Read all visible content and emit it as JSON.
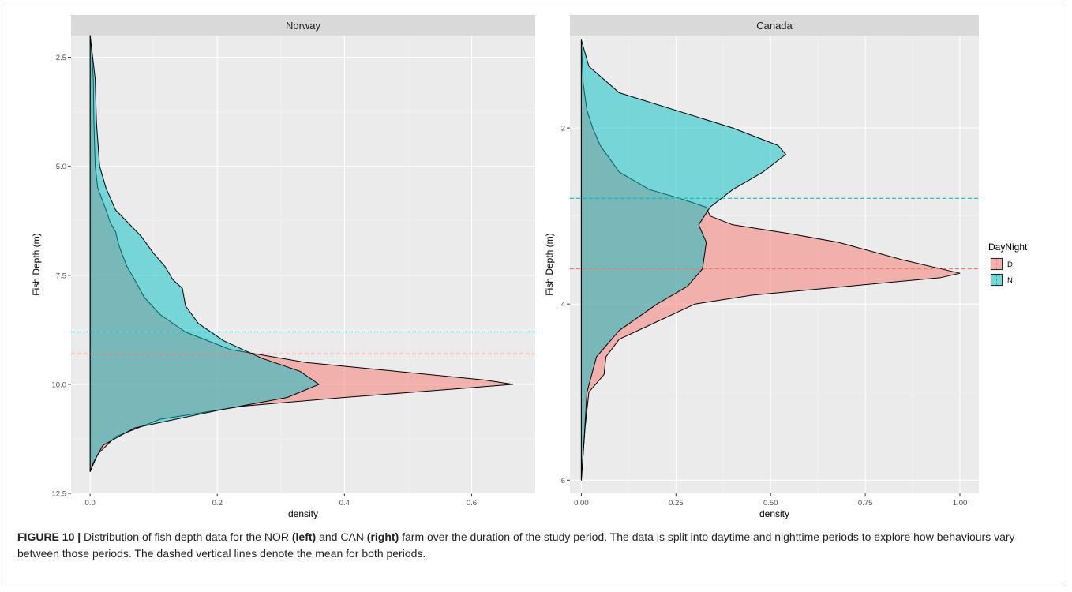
{
  "chart_data": [
    {
      "type": "area",
      "title": "Norway",
      "xlabel": "density",
      "ylabel": "Fish Depth (m)",
      "xlim": [
        -0.03,
        0.7
      ],
      "ylim": [
        12.5,
        2.0
      ],
      "x_ticks": [
        0.0,
        0.2,
        0.4,
        0.6
      ],
      "x_tick_labels": [
        "0.0",
        "0.2",
        "0.4",
        "0.6"
      ],
      "y_ticks": [
        2.5,
        5.0,
        7.5,
        10.0,
        12.5
      ],
      "y_tick_labels": [
        "2.5",
        "5.0",
        "7.5",
        "10.0",
        "12.5"
      ],
      "series": [
        {
          "name": "D",
          "color": "#F8766D",
          "mean_depth": 9.3,
          "points": [
            [
              2.0,
              0.0
            ],
            [
              2.5,
              0.003
            ],
            [
              3.0,
              0.005
            ],
            [
              4.0,
              0.006
            ],
            [
              5.0,
              0.008
            ],
            [
              5.5,
              0.012
            ],
            [
              6.0,
              0.025
            ],
            [
              6.3,
              0.032
            ],
            [
              6.5,
              0.04
            ],
            [
              6.8,
              0.045
            ],
            [
              7.0,
              0.05
            ],
            [
              7.3,
              0.058
            ],
            [
              7.6,
              0.07
            ],
            [
              8.0,
              0.085
            ],
            [
              8.4,
              0.11
            ],
            [
              8.8,
              0.15
            ],
            [
              9.2,
              0.22
            ],
            [
              9.5,
              0.34
            ],
            [
              9.7,
              0.48
            ],
            [
              9.9,
              0.62
            ],
            [
              10.0,
              0.665
            ],
            [
              10.1,
              0.58
            ],
            [
              10.3,
              0.4
            ],
            [
              10.5,
              0.24
            ],
            [
              10.8,
              0.11
            ],
            [
              11.2,
              0.04
            ],
            [
              11.6,
              0.012
            ],
            [
              12.0,
              0.0
            ]
          ]
        },
        {
          "name": "N",
          "color": "#00BFC4",
          "mean_depth": 8.8,
          "points": [
            [
              2.0,
              0.0
            ],
            [
              2.5,
              0.004
            ],
            [
              3.0,
              0.008
            ],
            [
              4.0,
              0.01
            ],
            [
              5.0,
              0.015
            ],
            [
              5.5,
              0.025
            ],
            [
              6.0,
              0.04
            ],
            [
              6.3,
              0.06
            ],
            [
              6.6,
              0.08
            ],
            [
              7.0,
              0.1
            ],
            [
              7.3,
              0.118
            ],
            [
              7.6,
              0.13
            ],
            [
              7.8,
              0.145
            ],
            [
              8.2,
              0.15
            ],
            [
              8.6,
              0.17
            ],
            [
              9.0,
              0.21
            ],
            [
              9.4,
              0.27
            ],
            [
              9.7,
              0.33
            ],
            [
              10.0,
              0.36
            ],
            [
              10.3,
              0.31
            ],
            [
              10.6,
              0.2
            ],
            [
              11.0,
              0.07
            ],
            [
              11.4,
              0.02
            ],
            [
              11.8,
              0.005
            ],
            [
              12.0,
              0.0
            ]
          ]
        }
      ]
    },
    {
      "type": "area",
      "title": "Canada",
      "xlabel": "density",
      "ylabel": "Fish Depth (m)",
      "xlim": [
        -0.03,
        1.05
      ],
      "ylim": [
        6.15,
        0.95
      ],
      "x_ticks": [
        0.0,
        0.25,
        0.5,
        0.75,
        1.0
      ],
      "x_tick_labels": [
        "0.00",
        "0.25",
        "0.50",
        "0.75",
        "1.00"
      ],
      "y_ticks": [
        2,
        4,
        6
      ],
      "y_tick_labels": [
        "2",
        "4",
        "6"
      ],
      "series": [
        {
          "name": "D",
          "color": "#F8766D",
          "mean_depth": 3.6,
          "points": [
            [
              1.0,
              0.0
            ],
            [
              1.5,
              0.005
            ],
            [
              1.8,
              0.015
            ],
            [
              2.0,
              0.03
            ],
            [
              2.2,
              0.05
            ],
            [
              2.5,
              0.1
            ],
            [
              2.7,
              0.18
            ],
            [
              2.8,
              0.26
            ],
            [
              2.9,
              0.33
            ],
            [
              3.0,
              0.34
            ],
            [
              3.1,
              0.4
            ],
            [
              3.2,
              0.55
            ],
            [
              3.3,
              0.68
            ],
            [
              3.5,
              0.85
            ],
            [
              3.65,
              1.0
            ],
            [
              3.7,
              0.95
            ],
            [
              3.8,
              0.7
            ],
            [
              3.9,
              0.45
            ],
            [
              4.0,
              0.3
            ],
            [
              4.2,
              0.2
            ],
            [
              4.4,
              0.1
            ],
            [
              4.6,
              0.065
            ],
            [
              4.8,
              0.06
            ],
            [
              5.0,
              0.02
            ],
            [
              5.4,
              0.01
            ],
            [
              6.0,
              0.0
            ]
          ]
        },
        {
          "name": "N",
          "color": "#00BFC4",
          "mean_depth": 2.8,
          "points": [
            [
              1.0,
              0.0
            ],
            [
              1.3,
              0.02
            ],
            [
              1.6,
              0.1
            ],
            [
              1.8,
              0.25
            ],
            [
              2.0,
              0.4
            ],
            [
              2.2,
              0.52
            ],
            [
              2.3,
              0.54
            ],
            [
              2.5,
              0.48
            ],
            [
              2.7,
              0.4
            ],
            [
              2.9,
              0.34
            ],
            [
              3.1,
              0.31
            ],
            [
              3.3,
              0.33
            ],
            [
              3.6,
              0.32
            ],
            [
              3.8,
              0.28
            ],
            [
              4.0,
              0.2
            ],
            [
              4.3,
              0.1
            ],
            [
              4.6,
              0.04
            ],
            [
              5.0,
              0.015
            ],
            [
              5.5,
              0.008
            ],
            [
              6.0,
              0.0
            ]
          ]
        }
      ]
    }
  ],
  "legend": {
    "title": "DayNight",
    "items": [
      {
        "label": "D",
        "color": "#F8766D"
      },
      {
        "label": "N",
        "color": "#00BFC4"
      }
    ]
  },
  "caption": {
    "figure_label": "FIGURE 10 |",
    "text_1": " Distribution of fish depth data for the NOR ",
    "bold_1": "(left)",
    "text_2": " and CAN ",
    "bold_2": "(right)",
    "text_3": " farm over the duration of the study period. The data is split into daytime and nighttime periods to explore how behaviours vary between those periods. The dashed vertical lines denote the mean for both periods."
  }
}
